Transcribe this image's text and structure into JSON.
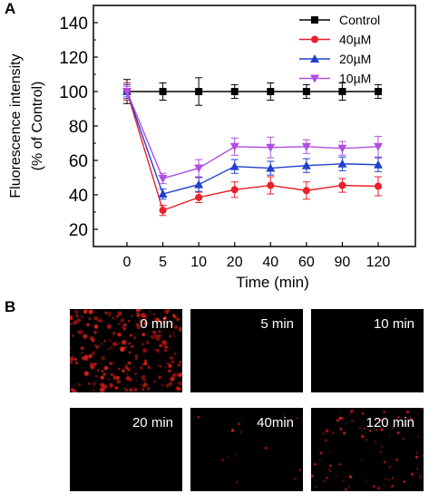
{
  "panel_a_label": "A",
  "panel_b_label": "B",
  "chart_data": {
    "type": "line",
    "ylabel_line1": "Fluorescence intensity",
    "ylabel_line2": "(% of Control)",
    "xlabel": "Time (min)",
    "categories": [
      "0",
      "5",
      "10",
      "20",
      "40",
      "60",
      "90",
      "120"
    ],
    "ylim": [
      10,
      150
    ],
    "yticks": [
      20,
      40,
      60,
      80,
      100,
      120,
      140
    ],
    "legend_position": "top-right",
    "series": [
      {
        "name": "Control",
        "color": "#000000",
        "marker": "square",
        "values": [
          100,
          100,
          100,
          100,
          100,
          100,
          100,
          100
        ],
        "errors": [
          7,
          5,
          8,
          4,
          5,
          4,
          5,
          4
        ]
      },
      {
        "name": "40µM",
        "color": "#e8202a",
        "marker": "circle",
        "values": [
          100,
          31,
          38.5,
          43,
          45.5,
          42.5,
          45.5,
          45
        ],
        "errors": [
          5,
          3,
          3,
          4.5,
          5,
          5,
          4,
          5.5
        ]
      },
      {
        "name": "20µM",
        "color": "#2140cc",
        "marker": "triangle-up",
        "values": [
          100,
          40.5,
          46,
          56.5,
          55.5,
          57,
          58,
          57.5
        ],
        "errors": [
          4,
          3,
          4,
          4,
          4,
          4,
          4,
          4
        ]
      },
      {
        "name": "10µM",
        "color": "#b04fe0",
        "marker": "triangle-down",
        "values": [
          100,
          49.5,
          55.5,
          68,
          67.5,
          68,
          67,
          68
        ],
        "errors": [
          3,
          3,
          5,
          5,
          6,
          4,
          4,
          6
        ]
      }
    ]
  },
  "tiles": [
    {
      "label": "0 min",
      "density": 1.0
    },
    {
      "label": "5 min",
      "density": 0.0
    },
    {
      "label": "10 min",
      "density": 0.0
    },
    {
      "label": "20 min",
      "density": 0.0
    },
    {
      "label": "40min",
      "density": 0.05
    },
    {
      "label": "120 min",
      "density": 0.35
    }
  ]
}
